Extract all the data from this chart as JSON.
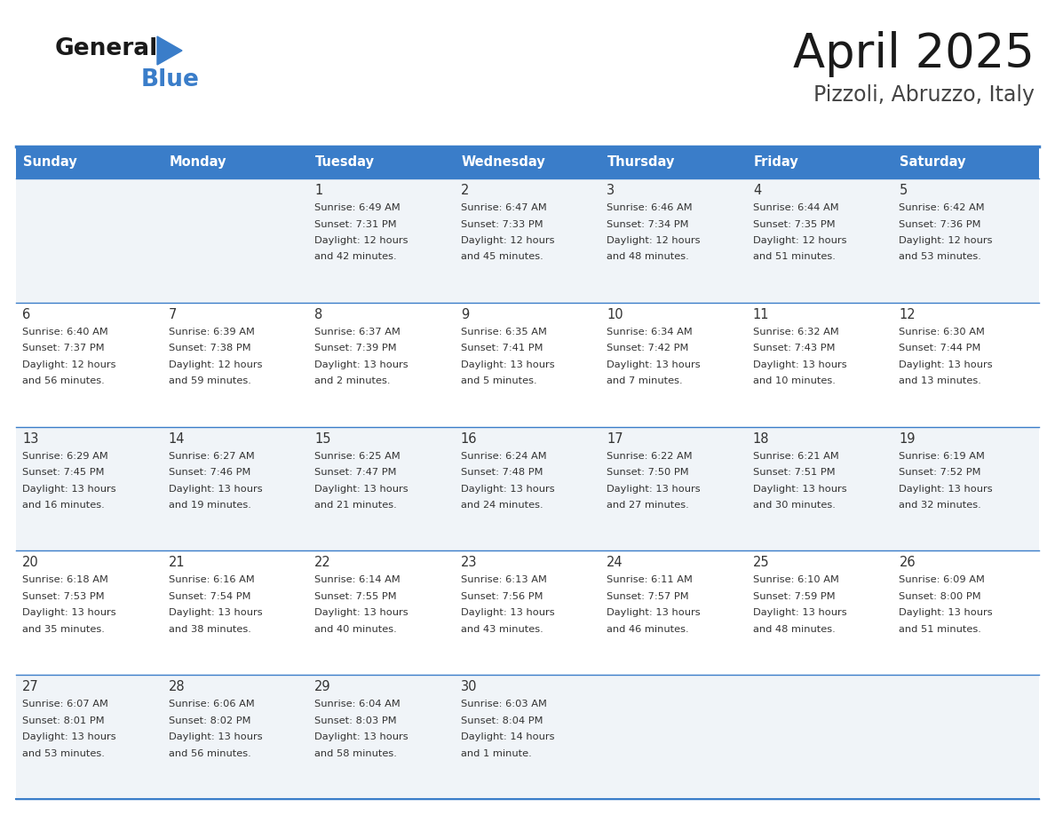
{
  "title": "April 2025",
  "subtitle": "Pizzoli, Abruzzo, Italy",
  "header_bg_color": "#3A7DC9",
  "header_text_color": "#FFFFFF",
  "row_bg_even": "#F0F4F8",
  "row_bg_odd": "#FFFFFF",
  "grid_line_color": "#3A7DC9",
  "text_color": "#333333",
  "days_of_week": [
    "Sunday",
    "Monday",
    "Tuesday",
    "Wednesday",
    "Thursday",
    "Friday",
    "Saturday"
  ],
  "calendar_data": [
    [
      {
        "day": "",
        "sunrise": "",
        "sunset": "",
        "daylight": ""
      },
      {
        "day": "",
        "sunrise": "",
        "sunset": "",
        "daylight": ""
      },
      {
        "day": "1",
        "sunrise": "6:49 AM",
        "sunset": "7:31 PM",
        "daylight": "12 hours and 42 minutes."
      },
      {
        "day": "2",
        "sunrise": "6:47 AM",
        "sunset": "7:33 PM",
        "daylight": "12 hours and 45 minutes."
      },
      {
        "day": "3",
        "sunrise": "6:46 AM",
        "sunset": "7:34 PM",
        "daylight": "12 hours and 48 minutes."
      },
      {
        "day": "4",
        "sunrise": "6:44 AM",
        "sunset": "7:35 PM",
        "daylight": "12 hours and 51 minutes."
      },
      {
        "day": "5",
        "sunrise": "6:42 AM",
        "sunset": "7:36 PM",
        "daylight": "12 hours and 53 minutes."
      }
    ],
    [
      {
        "day": "6",
        "sunrise": "6:40 AM",
        "sunset": "7:37 PM",
        "daylight": "12 hours and 56 minutes."
      },
      {
        "day": "7",
        "sunrise": "6:39 AM",
        "sunset": "7:38 PM",
        "daylight": "12 hours and 59 minutes."
      },
      {
        "day": "8",
        "sunrise": "6:37 AM",
        "sunset": "7:39 PM",
        "daylight": "13 hours and 2 minutes."
      },
      {
        "day": "9",
        "sunrise": "6:35 AM",
        "sunset": "7:41 PM",
        "daylight": "13 hours and 5 minutes."
      },
      {
        "day": "10",
        "sunrise": "6:34 AM",
        "sunset": "7:42 PM",
        "daylight": "13 hours and 7 minutes."
      },
      {
        "day": "11",
        "sunrise": "6:32 AM",
        "sunset": "7:43 PM",
        "daylight": "13 hours and 10 minutes."
      },
      {
        "day": "12",
        "sunrise": "6:30 AM",
        "sunset": "7:44 PM",
        "daylight": "13 hours and 13 minutes."
      }
    ],
    [
      {
        "day": "13",
        "sunrise": "6:29 AM",
        "sunset": "7:45 PM",
        "daylight": "13 hours and 16 minutes."
      },
      {
        "day": "14",
        "sunrise": "6:27 AM",
        "sunset": "7:46 PM",
        "daylight": "13 hours and 19 minutes."
      },
      {
        "day": "15",
        "sunrise": "6:25 AM",
        "sunset": "7:47 PM",
        "daylight": "13 hours and 21 minutes."
      },
      {
        "day": "16",
        "sunrise": "6:24 AM",
        "sunset": "7:48 PM",
        "daylight": "13 hours and 24 minutes."
      },
      {
        "day": "17",
        "sunrise": "6:22 AM",
        "sunset": "7:50 PM",
        "daylight": "13 hours and 27 minutes."
      },
      {
        "day": "18",
        "sunrise": "6:21 AM",
        "sunset": "7:51 PM",
        "daylight": "13 hours and 30 minutes."
      },
      {
        "day": "19",
        "sunrise": "6:19 AM",
        "sunset": "7:52 PM",
        "daylight": "13 hours and 32 minutes."
      }
    ],
    [
      {
        "day": "20",
        "sunrise": "6:18 AM",
        "sunset": "7:53 PM",
        "daylight": "13 hours and 35 minutes."
      },
      {
        "day": "21",
        "sunrise": "6:16 AM",
        "sunset": "7:54 PM",
        "daylight": "13 hours and 38 minutes."
      },
      {
        "day": "22",
        "sunrise": "6:14 AM",
        "sunset": "7:55 PM",
        "daylight": "13 hours and 40 minutes."
      },
      {
        "day": "23",
        "sunrise": "6:13 AM",
        "sunset": "7:56 PM",
        "daylight": "13 hours and 43 minutes."
      },
      {
        "day": "24",
        "sunrise": "6:11 AM",
        "sunset": "7:57 PM",
        "daylight": "13 hours and 46 minutes."
      },
      {
        "day": "25",
        "sunrise": "6:10 AM",
        "sunset": "7:59 PM",
        "daylight": "13 hours and 48 minutes."
      },
      {
        "day": "26",
        "sunrise": "6:09 AM",
        "sunset": "8:00 PM",
        "daylight": "13 hours and 51 minutes."
      }
    ],
    [
      {
        "day": "27",
        "sunrise": "6:07 AM",
        "sunset": "8:01 PM",
        "daylight": "13 hours and 53 minutes."
      },
      {
        "day": "28",
        "sunrise": "6:06 AM",
        "sunset": "8:02 PM",
        "daylight": "13 hours and 56 minutes."
      },
      {
        "day": "29",
        "sunrise": "6:04 AM",
        "sunset": "8:03 PM",
        "daylight": "13 hours and 58 minutes."
      },
      {
        "day": "30",
        "sunrise": "6:03 AM",
        "sunset": "8:04 PM",
        "daylight": "14 hours and 1 minute."
      },
      {
        "day": "",
        "sunrise": "",
        "sunset": "",
        "daylight": ""
      },
      {
        "day": "",
        "sunrise": "",
        "sunset": "",
        "daylight": ""
      },
      {
        "day": "",
        "sunrise": "",
        "sunset": "",
        "daylight": ""
      }
    ]
  ],
  "logo_general_color": "#1a1a1a",
  "logo_blue_color": "#3A7DC9",
  "triangle_color": "#3A7DC9",
  "title_color": "#1a1a1a",
  "subtitle_color": "#444444"
}
